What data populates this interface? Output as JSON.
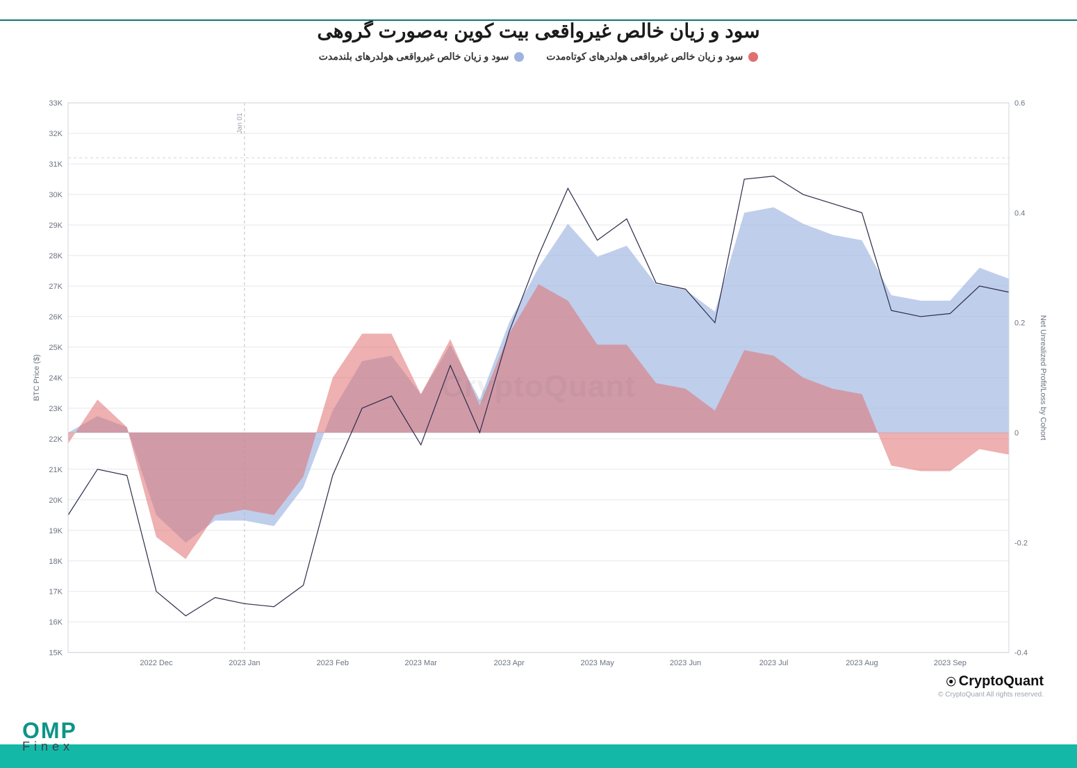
{
  "title": "سود و زیان خالص غیرواقعی بیت کوین به‌صورت گروهی",
  "legend": {
    "short_term": {
      "label": "سود و زیان خالص غیرواقعی هولدرهای کوتاه‌مدت",
      "color": "#e07070"
    },
    "long_term": {
      "label": "سود و زیان خالص غیرواقعی هولدرهای بلندمدت",
      "color": "#9db4e0"
    }
  },
  "watermark": "CryptoQuant",
  "brand": {
    "line1": "OMP",
    "line2": "Finex"
  },
  "source": {
    "name": "CryptoQuant",
    "sub": "© CryptoQuant All rights reserved."
  },
  "chart": {
    "type": "line+area-dual-axis",
    "background_color": "#ffffff",
    "grid_color": "#e5e7eb",
    "font_color": "#6b7280",
    "price_line_color": "#2b2b4a",
    "price_line_width": 1.2,
    "marker_line": {
      "label": "Jan 01",
      "x_index": 6,
      "color": "#bfbfbf",
      "dash": "4 4"
    },
    "hline": {
      "y_right": 0.5,
      "color": "#d1d5db",
      "dash": "4 4"
    },
    "y_left": {
      "label": "BTC Price ($)",
      "min": 15000,
      "max": 33000,
      "ticks": [
        15000,
        16000,
        17000,
        18000,
        19000,
        20000,
        21000,
        22000,
        23000,
        24000,
        25000,
        26000,
        27000,
        28000,
        29000,
        30000,
        31000,
        32000,
        33000
      ],
      "tick_labels": [
        "15K",
        "16K",
        "17K",
        "18K",
        "19K",
        "20K",
        "21K",
        "22K",
        "23K",
        "24K",
        "25K",
        "26K",
        "27K",
        "28K",
        "29K",
        "30K",
        "31K",
        "32K",
        "33K"
      ]
    },
    "y_right": {
      "label": "Net Unrealized Profit/Loss by Cohort",
      "min": -0.4,
      "max": 0.6,
      "ticks": [
        -0.4,
        -0.2,
        0,
        0.2,
        0.4,
        0.6
      ],
      "tick_labels": [
        "-0.4",
        "-0.2",
        "0",
        "0.2",
        "0.4",
        "0.6"
      ]
    },
    "x": {
      "tick_labels": [
        "2022 Dec",
        "2023 Jan",
        "2023 Feb",
        "2023 Mar",
        "2023 Apr",
        "2023 May",
        "2023 Jun",
        "2023 Jul",
        "2023 Aug",
        "2023 Sep"
      ],
      "tick_indices": [
        3,
        6,
        9,
        12,
        15,
        18,
        21,
        24,
        27,
        30
      ],
      "count": 33
    },
    "series": {
      "price": [
        19500,
        21000,
        20800,
        17000,
        16200,
        16800,
        16600,
        16500,
        17200,
        20800,
        23000,
        23400,
        21800,
        24400,
        22200,
        25500,
        28000,
        30200,
        28500,
        29200,
        27100,
        26900,
        25800,
        30500,
        30600,
        30000,
        29700,
        29400,
        26200,
        26000,
        26100,
        27000,
        26800
      ],
      "short_term": [
        -0.02,
        0.06,
        0.01,
        -0.19,
        -0.23,
        -0.15,
        -0.14,
        -0.15,
        -0.08,
        0.1,
        0.18,
        0.18,
        0.07,
        0.17,
        0.05,
        0.18,
        0.27,
        0.24,
        0.16,
        0.16,
        0.09,
        0.08,
        0.04,
        0.15,
        0.14,
        0.1,
        0.08,
        0.07,
        -0.06,
        -0.07,
        -0.07,
        -0.03,
        -0.04
      ],
      "long_term": [
        0.0,
        0.03,
        0.01,
        -0.15,
        -0.2,
        -0.16,
        -0.16,
        -0.17,
        -0.1,
        0.04,
        0.13,
        0.14,
        0.07,
        0.16,
        0.06,
        0.2,
        0.3,
        0.38,
        0.32,
        0.34,
        0.27,
        0.26,
        0.22,
        0.4,
        0.41,
        0.38,
        0.36,
        0.35,
        0.25,
        0.24,
        0.24,
        0.3,
        0.28
      ]
    },
    "area_fill": {
      "short_term": "rgba(224,112,112,0.55)",
      "long_term": "rgba(157,180,224,0.65)"
    }
  }
}
